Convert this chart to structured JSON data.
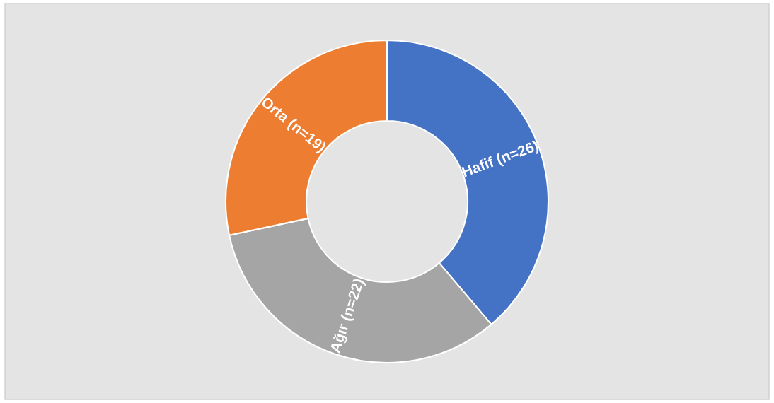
{
  "chart_data": {
    "type": "donut",
    "categories": [
      "Hafif",
      "Ağır",
      "Orta"
    ],
    "values": [
      26,
      22,
      19
    ],
    "value_labels": [
      "(n=26)",
      "(n=22)",
      "(n=19)"
    ],
    "colors": [
      "#4472c4",
      "#a5a5a5",
      "#ed7d31"
    ]
  }
}
